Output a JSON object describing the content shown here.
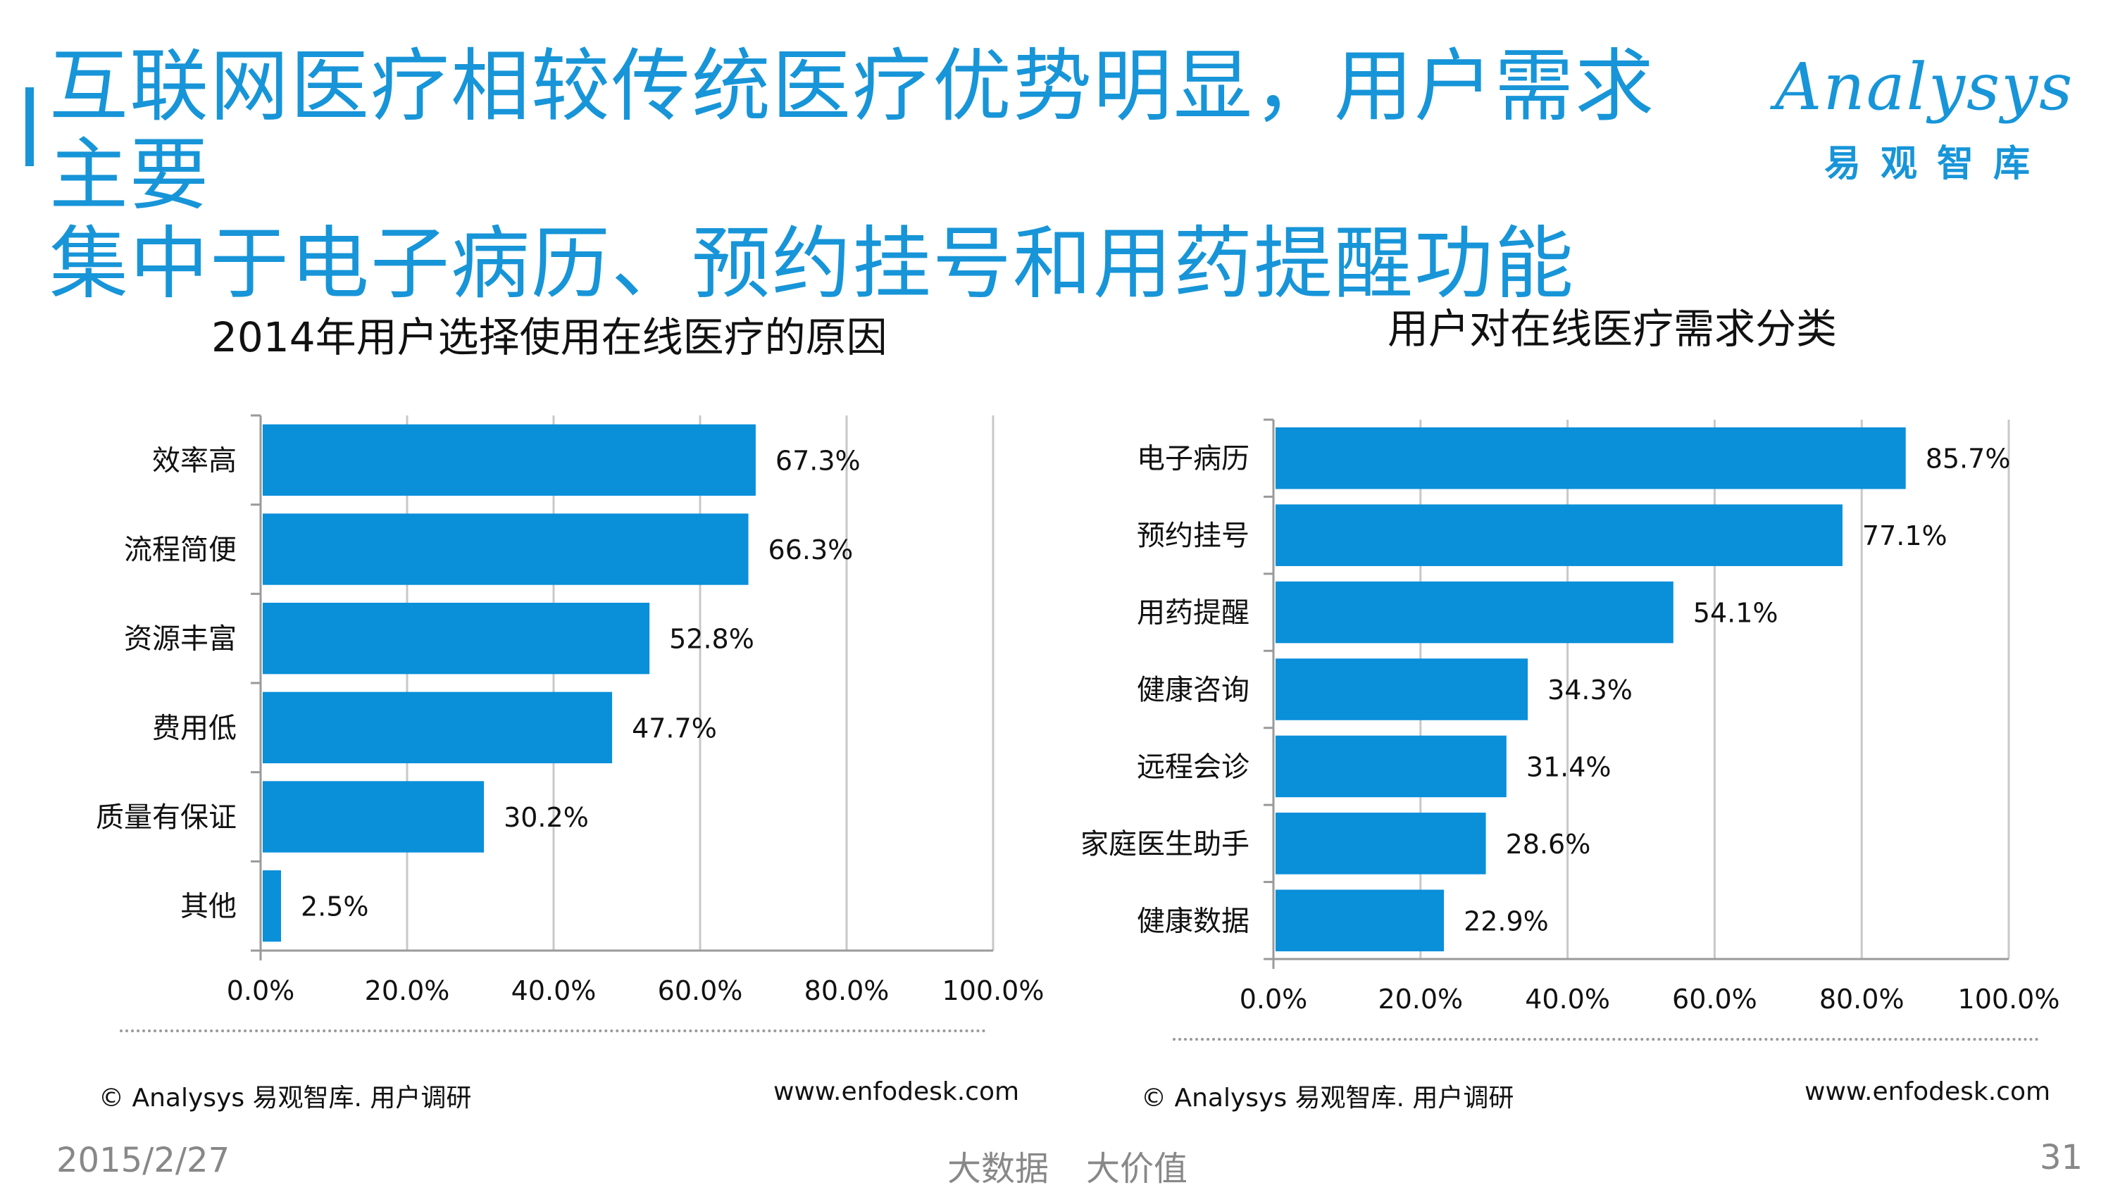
{
  "page": {
    "title_line1": "互联网医疗相较传统医疗优势明显，用户需求主要",
    "title_line2": "集中于电子病历、预约挂号和用药提醒功能",
    "logo_text": "Analysys",
    "logo_cn": "易观智库",
    "footer": {
      "date": "2015/2/27",
      "slogan_left": "大数据",
      "slogan_right": "大价值",
      "page_number": "31"
    },
    "colors": {
      "accent": "#1795d8",
      "bar": "#0a8fd9"
    }
  },
  "chart_data": [
    {
      "type": "bar",
      "orientation": "horizontal",
      "title": "2014年用户选择使用在线医疗的原因",
      "categories": [
        "效率高",
        "流程简便",
        "资源丰富",
        "费用低",
        "质量有保证",
        "其他"
      ],
      "values": [
        67.3,
        66.3,
        52.8,
        47.7,
        30.2,
        2.5
      ],
      "value_labels": [
        "67.3%",
        "66.3%",
        "52.8%",
        "47.7%",
        "30.2%",
        "2.5%"
      ],
      "xlim": [
        0,
        100
      ],
      "xticks": [
        "0.0%",
        "20.0%",
        "40.0%",
        "60.0%",
        "80.0%",
        "100.0%"
      ],
      "grid": "vertical",
      "source": "© Analysys 易观智库. 用户调研",
      "url": "www.enfodesk.com"
    },
    {
      "type": "bar",
      "orientation": "horizontal",
      "title": "用户对在线医疗需求分类",
      "categories": [
        "电子病历",
        "预约挂号",
        "用药提醒",
        "健康咨询",
        "远程会诊",
        "家庭医生助手",
        "健康数据"
      ],
      "values": [
        85.7,
        77.1,
        54.1,
        34.3,
        31.4,
        28.6,
        22.9
      ],
      "value_labels": [
        "85.7%",
        "77.1%",
        "54.1%",
        "34.3%",
        "31.4%",
        "28.6%",
        "22.9%"
      ],
      "xlim": [
        0,
        100
      ],
      "xticks": [
        "0.0%",
        "20.0%",
        "40.0%",
        "60.0%",
        "80.0%",
        "100.0%"
      ],
      "grid": "vertical",
      "source": "© Analysys 易观智库. 用户调研",
      "url": "www.enfodesk.com"
    }
  ]
}
